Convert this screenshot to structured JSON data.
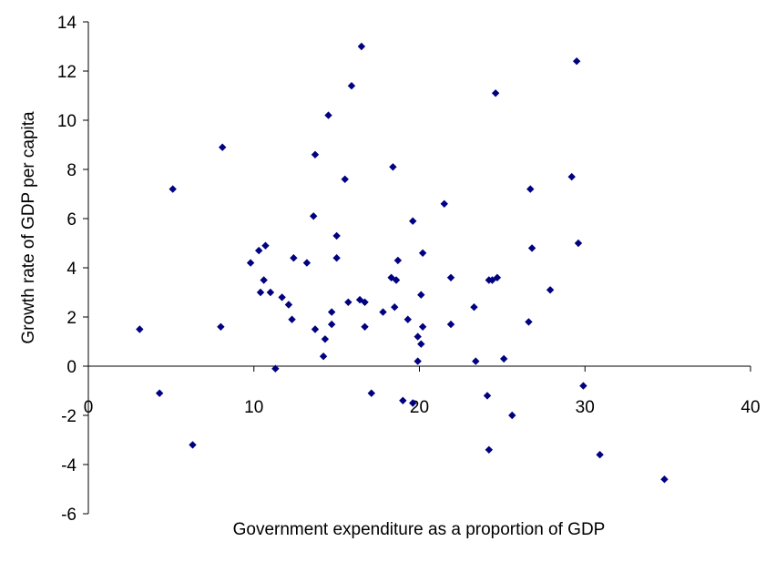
{
  "chart_data": {
    "type": "scatter",
    "title": "",
    "xlabel": "Government expenditure as a proportion of GDP",
    "ylabel": "Growth rate of GDP per capita",
    "xlim": [
      0,
      40
    ],
    "ylim": [
      -6,
      14
    ],
    "x_ticks": [
      0,
      10,
      20,
      30,
      40
    ],
    "y_ticks": [
      -6,
      -4,
      -2,
      0,
      2,
      4,
      6,
      8,
      10,
      12,
      14
    ],
    "x_tick_labels": [
      "0",
      "10",
      "20",
      "30",
      "40"
    ],
    "y_tick_labels": [
      "-6",
      "-4",
      "-2",
      "0",
      "2",
      "4",
      "6",
      "8",
      "10",
      "12",
      "14"
    ],
    "grid": false,
    "legend": "none",
    "marker": "diamond",
    "marker_color": "#000080",
    "points": [
      [
        3.1,
        1.5
      ],
      [
        4.3,
        -1.1
      ],
      [
        5.1,
        7.2
      ],
      [
        6.3,
        -3.2
      ],
      [
        8.0,
        1.6
      ],
      [
        8.1,
        8.9
      ],
      [
        9.8,
        4.2
      ],
      [
        10.3,
        4.7
      ],
      [
        10.4,
        3.0
      ],
      [
        10.6,
        3.5
      ],
      [
        10.7,
        4.9
      ],
      [
        11.0,
        3.0
      ],
      [
        11.3,
        -0.1
      ],
      [
        11.7,
        2.8
      ],
      [
        12.1,
        2.5
      ],
      [
        12.3,
        1.9
      ],
      [
        12.4,
        4.4
      ],
      [
        13.2,
        4.2
      ],
      [
        13.6,
        6.1
      ],
      [
        13.7,
        8.6
      ],
      [
        13.7,
        1.5
      ],
      [
        14.2,
        0.4
      ],
      [
        14.3,
        1.1
      ],
      [
        14.5,
        10.2
      ],
      [
        14.7,
        1.7
      ],
      [
        14.7,
        2.2
      ],
      [
        15.0,
        4.4
      ],
      [
        15.0,
        5.3
      ],
      [
        15.5,
        7.6
      ],
      [
        15.7,
        2.6
      ],
      [
        15.9,
        11.4
      ],
      [
        16.4,
        2.7
      ],
      [
        16.5,
        13.0
      ],
      [
        16.7,
        1.6
      ],
      [
        16.7,
        2.6
      ],
      [
        17.1,
        -1.1
      ],
      [
        17.8,
        2.2
      ],
      [
        18.3,
        3.6
      ],
      [
        18.4,
        8.1
      ],
      [
        18.5,
        2.4
      ],
      [
        18.6,
        3.5
      ],
      [
        18.7,
        4.3
      ],
      [
        19.0,
        -1.4
      ],
      [
        19.3,
        1.9
      ],
      [
        19.6,
        5.9
      ],
      [
        19.6,
        -1.5
      ],
      [
        19.9,
        0.2
      ],
      [
        19.9,
        1.2
      ],
      [
        20.1,
        0.9
      ],
      [
        20.1,
        2.9
      ],
      [
        20.2,
        4.6
      ],
      [
        20.2,
        1.6
      ],
      [
        21.5,
        6.6
      ],
      [
        21.9,
        3.6
      ],
      [
        21.9,
        1.7
      ],
      [
        23.3,
        2.4
      ],
      [
        23.4,
        0.2
      ],
      [
        24.1,
        -1.2
      ],
      [
        24.2,
        3.5
      ],
      [
        24.2,
        -3.4
      ],
      [
        24.4,
        3.5
      ],
      [
        24.6,
        11.1
      ],
      [
        24.7,
        3.6
      ],
      [
        25.1,
        0.3
      ],
      [
        25.6,
        -2.0
      ],
      [
        26.6,
        1.8
      ],
      [
        26.7,
        7.2
      ],
      [
        26.8,
        4.8
      ],
      [
        27.9,
        3.1
      ],
      [
        29.2,
        7.7
      ],
      [
        29.5,
        12.4
      ],
      [
        29.6,
        5.0
      ],
      [
        29.9,
        -0.8
      ],
      [
        30.9,
        -3.6
      ],
      [
        34.8,
        -4.6
      ]
    ]
  }
}
